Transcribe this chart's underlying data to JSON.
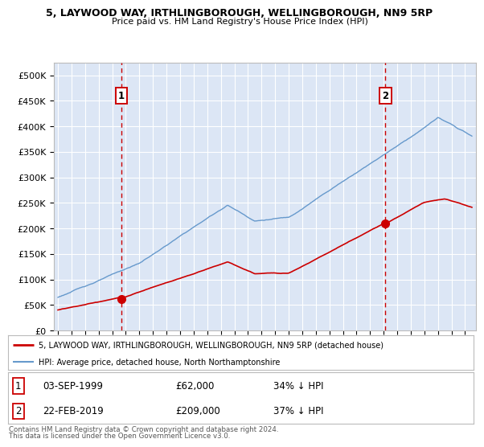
{
  "title1": "5, LAYWOOD WAY, IRTHLINGBOROUGH, WELLINGBOROUGH, NN9 5RP",
  "title2": "Price paid vs. HM Land Registry's House Price Index (HPI)",
  "background_color": "#dce6f5",
  "ylim": [
    0,
    525000
  ],
  "yticks": [
    0,
    50000,
    100000,
    150000,
    200000,
    250000,
    300000,
    350000,
    400000,
    450000,
    500000
  ],
  "ytick_labels": [
    "£0",
    "£50K",
    "£100K",
    "£150K",
    "£200K",
    "£250K",
    "£300K",
    "£350K",
    "£400K",
    "£450K",
    "£500K"
  ],
  "marker1_x": 1999.67,
  "marker1_y": 62000,
  "marker2_x": 2019.12,
  "marker2_y": 209000,
  "legend_line1": "5, LAYWOOD WAY, IRTHLINGBOROUGH, WELLINGBOROUGH, NN9 5RP (detached house)",
  "legend_line2": "HPI: Average price, detached house, North Northamptonshire",
  "table_row1": [
    "1",
    "03-SEP-1999",
    "£62,000",
    "34% ↓ HPI"
  ],
  "table_row2": [
    "2",
    "22-FEB-2019",
    "£209,000",
    "37% ↓ HPI"
  ],
  "footer1": "Contains HM Land Registry data © Crown copyright and database right 2024.",
  "footer2": "This data is licensed under the Open Government Licence v3.0.",
  "red_color": "#cc0000",
  "blue_color": "#6699cc",
  "grid_color": "#ffffff",
  "box_color": "#cc0000",
  "xlim_start": 1994.7,
  "xlim_end": 2025.8
}
